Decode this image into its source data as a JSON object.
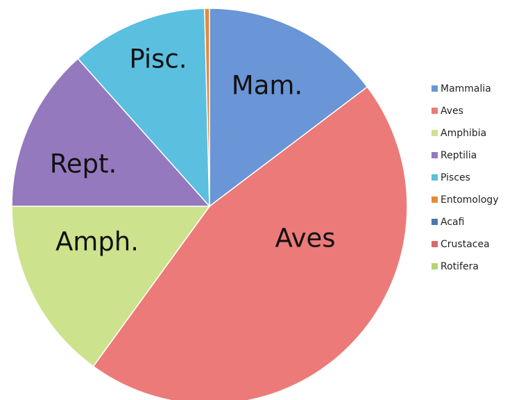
{
  "chart_data": {
    "type": "pie",
    "categories": [
      "Mammalia",
      "Aves",
      "Amphibia",
      "Reptilia",
      "Pisces",
      "Entomology",
      "Acafi",
      "Crustacea",
      "Rotifera"
    ],
    "values": [
      14.7,
      45.3,
      15,
      13.4,
      11.2,
      0.4,
      0,
      0,
      0
    ],
    "slice_labels": [
      "Mam.",
      "Aves",
      "Amph.",
      "Rept.",
      "Pisc.",
      null,
      null,
      null,
      null
    ],
    "colors": [
      "#6a95d6",
      "#ec7a78",
      "#cde28c",
      "#9579bf",
      "#5bbfe0",
      "#e8893a",
      "#4a78b0",
      "#d86a6a",
      "#b5d478"
    ],
    "legend": "right"
  }
}
